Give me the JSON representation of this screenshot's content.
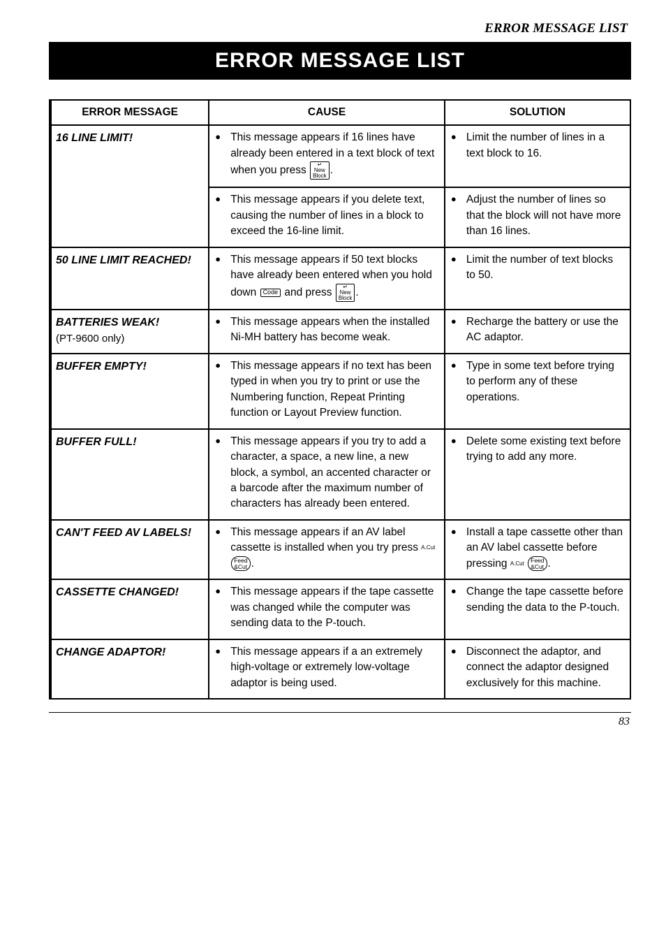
{
  "header_label": "ERROR MESSAGE LIST",
  "title": "ERROR MESSAGE LIST",
  "columns": {
    "c1": "ERROR MESSAGE",
    "c2": "CAUSE",
    "c3": "SOLUTION"
  },
  "rows": {
    "r1": {
      "msg": "16 LINE LIMIT!",
      "cause_a_pre": "This message appears if 16 lines have already been entered in a text block of text when you press ",
      "sol_a": "Limit the number of lines in a text block to 16.",
      "cause_b": "This message appears if you delete text, causing the number of lines in a block to exceed the 16-line limit.",
      "sol_b": "Adjust the number of lines so that the block will not have more than 16 lines."
    },
    "r2": {
      "msg": "50 LINE LIMIT REACHED!",
      "cause_pre": "This message appears if 50 text blocks have already been entered when you hold down ",
      "cause_mid": " and press ",
      "sol": "Limit the number of text blocks to 50."
    },
    "r3": {
      "msg": "BATTERIES WEAK!",
      "subnote": "(PT-9600 only)",
      "cause": "This message appears when the installed Ni-MH battery has become weak.",
      "sol": "Recharge the battery or use the AC adaptor."
    },
    "r4": {
      "msg": "BUFFER EMPTY!",
      "cause": "This message appears if no text has been typed in when you try to print or use the Numbering function, Repeat Printing function or Layout Preview function.",
      "sol": "Type in some text before trying to perform any of these operations."
    },
    "r5": {
      "msg": "BUFFER FULL!",
      "cause": "This message appears if you try to add a character, a space, a new line, a new block, a symbol, an accented character or a barcode after the maximum number of characters has already been entered.",
      "sol": "Delete some existing text before trying to add any more."
    },
    "r6": {
      "msg": "CAN'T FEED AV LABELS!",
      "cause_pre": "This message appears if an AV label cassette is installed when you try press ",
      "sol_pre": "Install a tape cassette other than an AV label cassette before pressing "
    },
    "r7": {
      "msg": "CASSETTE CHANGED!",
      "cause": "This message appears if the tape cassette was changed while the computer was sending data to the P-touch.",
      "sol": "Change the tape cassette before sending the data to the P-touch."
    },
    "r8": {
      "msg": "CHANGE ADAPTOR!",
      "cause": "This message appears if a an extremely high-voltage or extremely low-voltage adaptor is being used.",
      "sol": "Disconnect the adaptor, and connect the adaptor designed exclusively for this machine."
    }
  },
  "page_number": "83",
  "keys": {
    "newblock": "New\nBlock",
    "code": "Code",
    "feedcut": "Feed\n&Cut",
    "acut": "A.Cut"
  }
}
